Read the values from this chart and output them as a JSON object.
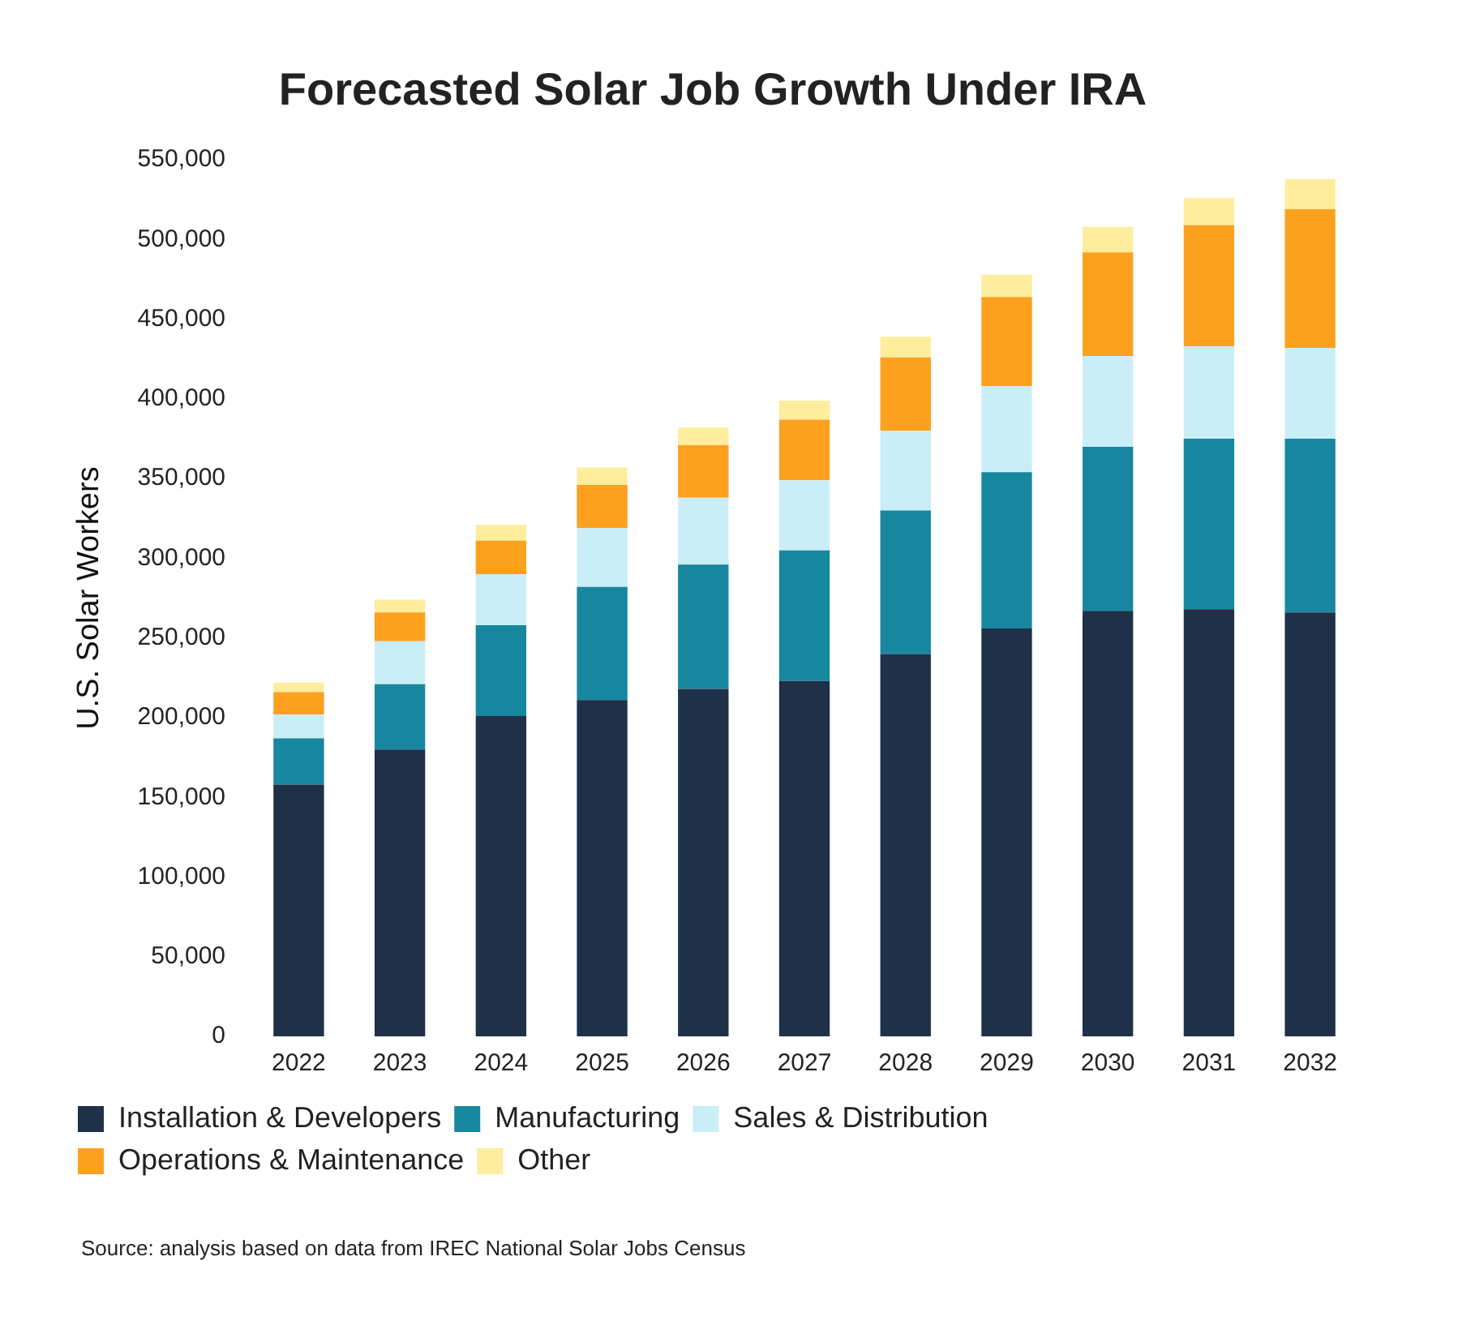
{
  "chart_data": {
    "type": "bar",
    "stacked": true,
    "title": "Forecasted Solar Job Growth Under IRA",
    "ylabel": "U.S. Solar Workers",
    "categories": [
      "2022",
      "2023",
      "2024",
      "2025",
      "2026",
      "2027",
      "2028",
      "2029",
      "2030",
      "2031",
      "2032"
    ],
    "series": [
      {
        "name": "Installation & Developers",
        "color": "#1f3049",
        "values": [
          158000,
          180000,
          201000,
          211000,
          218000,
          223000,
          240000,
          256000,
          267000,
          268000,
          266000
        ]
      },
      {
        "name": "Manufacturing",
        "color": "#17879f",
        "values": [
          29000,
          41000,
          57000,
          71000,
          78000,
          82000,
          90000,
          98000,
          103000,
          107000,
          109000
        ]
      },
      {
        "name": "Sales & Distribution",
        "color": "#c9eef8",
        "values": [
          15000,
          27000,
          32000,
          37000,
          42000,
          44000,
          50000,
          54000,
          57000,
          58000,
          57000
        ]
      },
      {
        "name": "Operations & Maintenance",
        "color": "#fca01e",
        "values": [
          14000,
          18000,
          21000,
          27000,
          33000,
          38000,
          46000,
          56000,
          65000,
          76000,
          87000
        ]
      },
      {
        "name": "Other",
        "color": "#feed9c",
        "values": [
          6000,
          8000,
          10000,
          11000,
          11000,
          12000,
          13000,
          14000,
          16000,
          17000,
          19000
        ]
      }
    ],
    "ylim": [
      0,
      550000
    ],
    "yticks": [
      {
        "value": 0,
        "label": "0"
      },
      {
        "value": 50000,
        "label": "50,000"
      },
      {
        "value": 100000,
        "label": "100,000"
      },
      {
        "value": 150000,
        "label": "150,000"
      },
      {
        "value": 200000,
        "label": "200,000"
      },
      {
        "value": 250000,
        "label": "250,000"
      },
      {
        "value": 300000,
        "label": "300,000"
      },
      {
        "value": 350000,
        "label": "350,000"
      },
      {
        "value": 400000,
        "label": "400,000"
      },
      {
        "value": 450000,
        "label": "450,000"
      },
      {
        "value": 500000,
        "label": "500,000"
      },
      {
        "value": 550000,
        "label": "550,000"
      }
    ],
    "grid": false,
    "legend": "bottom",
    "annotations": [
      "Source: analysis based on data from IREC National Solar Jobs Census"
    ]
  }
}
